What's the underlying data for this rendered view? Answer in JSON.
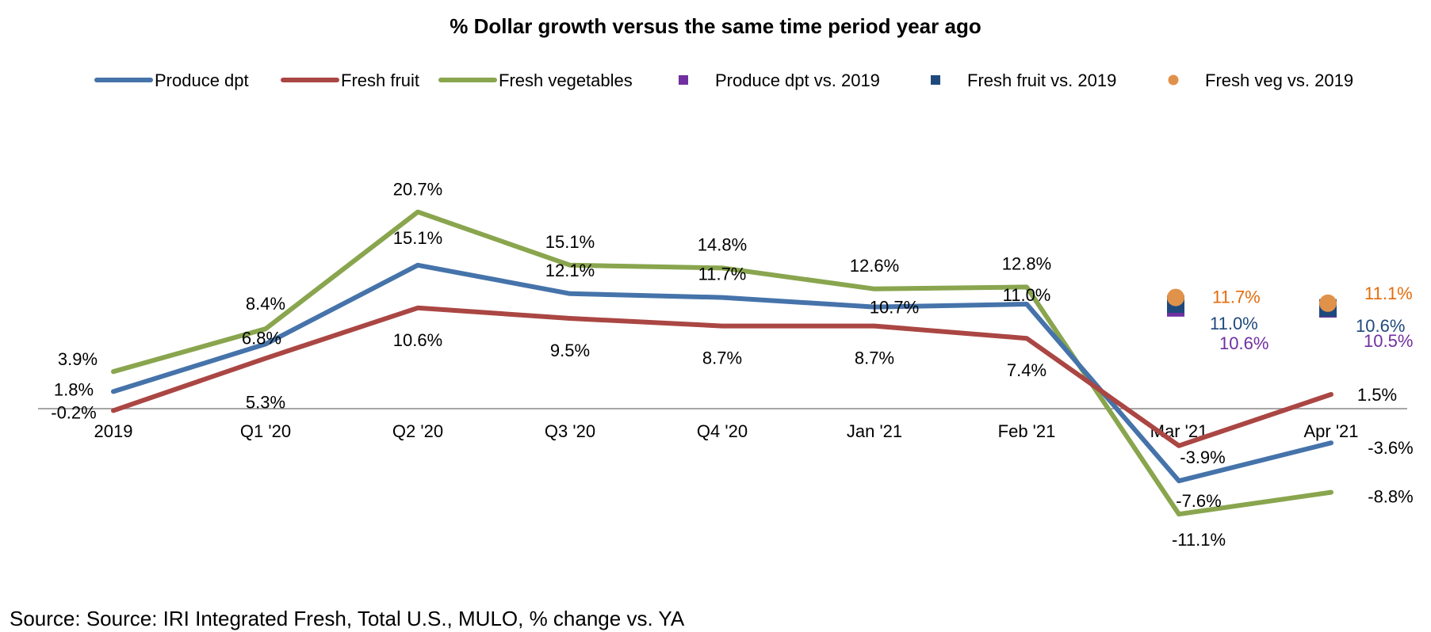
{
  "chart_data": {
    "type": "line",
    "title": "% Dollar growth versus the same time period year ago",
    "categories": [
      "2019",
      "Q1 '20",
      "Q2 '20",
      "Q3 '20",
      "Q4 '20",
      "Jan '21",
      "Feb '21",
      "Mar '21",
      "Apr '21"
    ],
    "series": [
      {
        "name": "Produce dpt",
        "color": "#4573AA",
        "values": [
          1.8,
          6.8,
          15.1,
          12.1,
          11.7,
          10.7,
          11.0,
          -7.6,
          -3.6
        ],
        "labels": [
          "1.8%",
          "6.8%",
          "15.1%",
          "12.1%",
          "11.7%",
          "10.7%",
          "11.0%",
          "-7.6%",
          "-3.6%"
        ]
      },
      {
        "name": "Fresh fruit",
        "color": "#AA4643",
        "values": [
          -0.2,
          5.3,
          10.6,
          9.5,
          8.7,
          8.7,
          7.4,
          -3.9,
          1.5
        ],
        "labels": [
          "-0.2%",
          "5.3%",
          "10.6%",
          "9.5%",
          "8.7%",
          "8.7%",
          "7.4%",
          "-3.9%",
          "1.5%"
        ]
      },
      {
        "name": "Fresh vegetables",
        "color": "#89A54E",
        "values": [
          3.9,
          8.4,
          20.7,
          15.1,
          14.8,
          12.6,
          12.8,
          -11.1,
          -8.8
        ],
        "labels": [
          "3.9%",
          "8.4%",
          "20.7%",
          "15.1%",
          "14.8%",
          "12.6%",
          "12.8%",
          "-11.1%",
          "-8.8%"
        ]
      }
    ],
    "markers": [
      {
        "name": "Produce dpt vs. 2019",
        "color": "#7030A0",
        "shape": "square",
        "points": [
          {
            "x": "Mar '21",
            "y": 10.6,
            "label": "10.6%"
          },
          {
            "x": "Apr '21",
            "y": 10.5,
            "label": "10.5%"
          }
        ]
      },
      {
        "name": "Fresh fruit vs. 2019",
        "color": "#1F497D",
        "shape": "square",
        "points": [
          {
            "x": "Mar '21",
            "y": 11.0,
            "label": "11.0%"
          },
          {
            "x": "Apr '21",
            "y": 10.6,
            "label": "10.6%"
          }
        ]
      },
      {
        "name": "Fresh veg vs. 2019",
        "color": "#E46C0A",
        "shape": "circle",
        "points": [
          {
            "x": "Mar '21",
            "y": 11.7,
            "label": "11.7%"
          },
          {
            "x": "Apr '21",
            "y": 11.1,
            "label": "11.1%"
          }
        ]
      }
    ],
    "marker_colors": {
      "circle_fill": "#E0924A"
    },
    "axis_color": "#A6A6A6",
    "ylim": [
      -13,
      24
    ],
    "grid": false,
    "legend_position": "top"
  },
  "source": "Source: Source: IRI Integrated Fresh, Total U.S., MULO, % change vs. YA"
}
